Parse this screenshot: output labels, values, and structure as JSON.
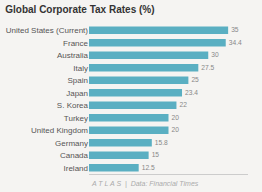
{
  "chart_data": {
    "type": "bar",
    "orientation": "horizontal",
    "title": "Global Corporate Tax Rates (%)",
    "categories": [
      "Ireland",
      "Canada",
      "Germany",
      "United Kingdom",
      "Turkey",
      "S. Korea",
      "Japan",
      "Spain",
      "Italy",
      "Australia",
      "France",
      "United States (Current)"
    ],
    "values": [
      12.5,
      15,
      15.8,
      20,
      20,
      22,
      23.4,
      25,
      27.5,
      30,
      34.4,
      35
    ],
    "color": "#5aafc2",
    "xlim": [
      0,
      40
    ],
    "data_labels": true,
    "tick_labels": "y",
    "grid": false,
    "annotations": [
      "A T L A S  |  Data: Financial Times"
    ]
  }
}
